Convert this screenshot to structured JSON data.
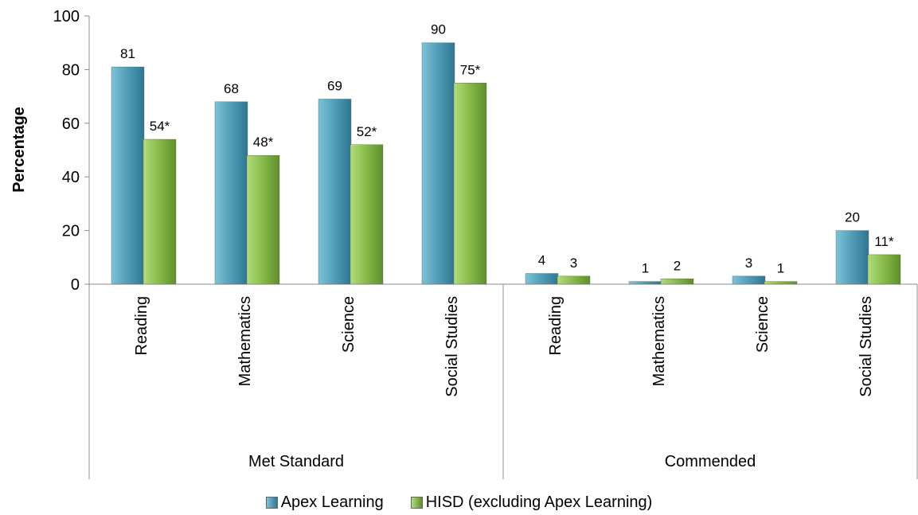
{
  "chart_data": {
    "type": "bar",
    "groups": [
      {
        "label": "Met Standard",
        "categories": [
          "Reading",
          "Mathematics",
          "Science",
          "Social Studies"
        ]
      },
      {
        "label": "Commended",
        "categories": [
          "Reading",
          "Mathematics",
          "Science",
          "Social Studies"
        ]
      }
    ],
    "series": [
      {
        "name": "Apex Learning",
        "color": "#4f9cb6",
        "values": [
          81,
          68,
          69,
          90,
          4,
          1,
          3,
          20
        ],
        "labels": [
          "81",
          "68",
          "69",
          "90",
          "4",
          "1",
          "3",
          "20"
        ]
      },
      {
        "name": "HISD (excluding Apex Learning)",
        "color": "#86b947",
        "values": [
          54,
          48,
          52,
          75,
          3,
          2,
          1,
          11
        ],
        "labels": [
          "54*",
          "48*",
          "52*",
          "75*",
          "3",
          "2",
          "1",
          "11*"
        ]
      }
    ],
    "ylabel": "Percentage",
    "ylim": [
      0,
      100
    ],
    "yticks": [
      0,
      20,
      40,
      60,
      80,
      100
    ],
    "grid": false,
    "legend_position": "bottom"
  }
}
